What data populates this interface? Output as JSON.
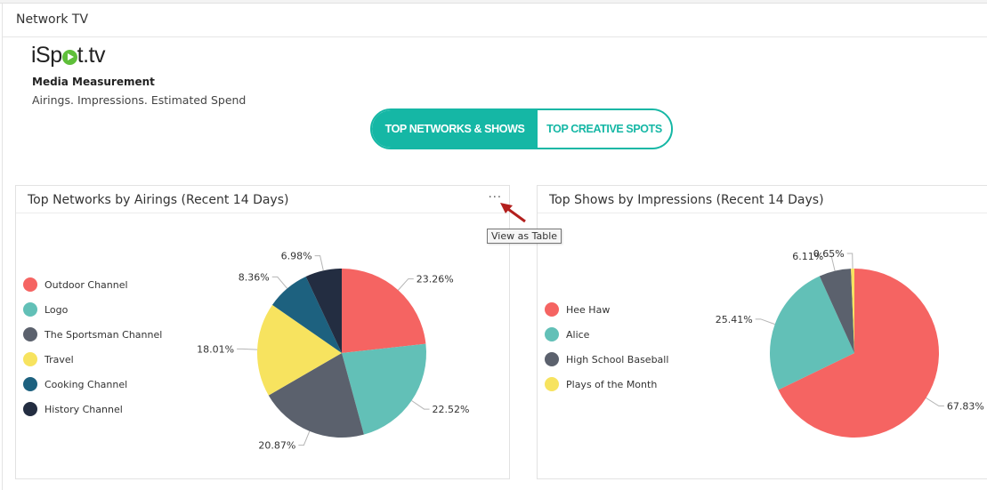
{
  "page": {
    "title": "Network TV"
  },
  "brand": {
    "logo_prefix": "iSp",
    "logo_suffix": "t.tv",
    "subtitle": "Media Measurement",
    "tagline": "Airings. Impressions. Estimated Spend"
  },
  "toggle": {
    "tabs": [
      {
        "label": "TOP NETWORKS & SHOWS",
        "active": true
      },
      {
        "label": "TOP CREATIVE SPOTS",
        "active": false
      }
    ]
  },
  "colors": {
    "accent": "#15b7a5"
  },
  "tooltip": {
    "text": "View as Table"
  },
  "panels": [
    {
      "title": "Top Networks by Airings (Recent 14 Days)",
      "menu_label": "···"
    },
    {
      "title": "Top Shows by Impressions (Recent 14 Days)"
    }
  ],
  "chart_data": [
    {
      "type": "pie",
      "title": "Top Networks by Airings (Recent 14 Days)",
      "labels": [
        "Outdoor Channel",
        "Logo",
        "The Sportsman Channel",
        "Travel",
        "Cooking Channel",
        "History Channel"
      ],
      "values": [
        23.26,
        22.52,
        20.87,
        18.01,
        8.36,
        6.98
      ],
      "value_labels": [
        "23.26%",
        "22.52%",
        "20.87%",
        "18.01%",
        "8.36%",
        "6.98%"
      ],
      "colors": [
        "#f56462",
        "#62c0b7",
        "#5b616d",
        "#f7e35f",
        "#1d617f",
        "#232d41"
      ],
      "legend": "left"
    },
    {
      "type": "pie",
      "title": "Top Shows by Impressions (Recent 14 Days)",
      "labels": [
        "Hee Haw",
        "Alice",
        "High School Baseball",
        "Plays of the Month"
      ],
      "values": [
        67.83,
        25.41,
        6.11,
        0.65
      ],
      "value_labels": [
        "67.83%",
        "25.41%",
        "6.11%",
        "0.65%"
      ],
      "colors": [
        "#f56462",
        "#62c0b7",
        "#5b616d",
        "#f7e35f"
      ],
      "legend": "left"
    }
  ]
}
